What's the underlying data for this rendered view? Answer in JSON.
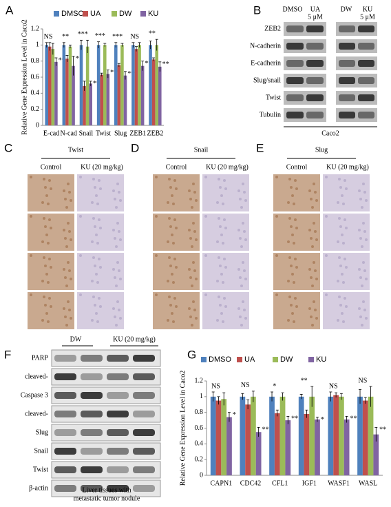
{
  "panel_labels": [
    "A",
    "B",
    "C",
    "D",
    "E",
    "F",
    "G"
  ],
  "chart_data": [
    {
      "type": "bar",
      "ylabel": "Relative Gene Expression Level in Caco2",
      "categories": [
        "E-cad",
        "N-cad",
        "Snail",
        "Twist",
        "Slug",
        "ZEB1",
        "ZEB2"
      ],
      "series": [
        {
          "name": "DMSO",
          "color": "#4f81bd",
          "values": [
            1.0,
            1.0,
            1.0,
            1.0,
            1.0,
            1.0,
            1.0
          ],
          "errors": [
            0.03,
            0.03,
            0.06,
            0.04,
            0.03,
            0.03,
            0.05
          ]
        },
        {
          "name": "UA",
          "color": "#c0504d",
          "values": [
            0.98,
            0.83,
            0.49,
            0.63,
            0.75,
            0.95,
            0.82
          ],
          "errors": [
            0.05,
            0.04,
            0.06,
            0.02,
            0.02,
            0.03,
            0.02
          ]
        },
        {
          "name": "DW",
          "color": "#9bbb59",
          "values": [
            0.95,
            0.98,
            0.98,
            1.0,
            1.0,
            1.0,
            1.0
          ],
          "errors": [
            0.07,
            0.02,
            0.08,
            0.02,
            0.02,
            0.03,
            0.07
          ]
        },
        {
          "name": "KU",
          "color": "#8064a2",
          "values": [
            0.79,
            0.74,
            0.52,
            0.64,
            0.62,
            0.74,
            0.73
          ],
          "errors": [
            0.05,
            0.12,
            0.03,
            0.05,
            0.05,
            0.06,
            0.06
          ]
        }
      ],
      "significance": [
        "NS",
        "**",
        "***",
        "***",
        "***",
        "NS",
        "**"
      ],
      "significance_ku": [
        "**",
        "*",
        "***",
        "***",
        "***",
        "**",
        "**"
      ],
      "ylim": [
        0,
        1.2
      ],
      "yticks": [
        0,
        0.2,
        0.4,
        0.6,
        0.8,
        1,
        1.2
      ]
    },
    {
      "type": "bar",
      "ylabel": "Relative Gene Expression Level in Caco2",
      "categories": [
        "CAPN1",
        "CDC42",
        "CFL1",
        "IGF1",
        "WASF1",
        "WASL"
      ],
      "series": [
        {
          "name": "DMSO",
          "color": "#4f81bd",
          "values": [
            1.0,
            1.0,
            1.0,
            1.0,
            1.0,
            1.0
          ],
          "errors": [
            0.06,
            0.04,
            0.06,
            0.03,
            0.06,
            0.09
          ]
        },
        {
          "name": "UA",
          "color": "#c0504d",
          "values": [
            0.95,
            0.9,
            0.79,
            0.78,
            1.02,
            0.95
          ],
          "errors": [
            0.05,
            0.06,
            0.04,
            0.05,
            0.03,
            0.04
          ]
        },
        {
          "name": "DW",
          "color": "#9bbb59",
          "values": [
            0.97,
            1.0,
            1.0,
            1.0,
            1.0,
            1.0
          ],
          "errors": [
            0.08,
            0.07,
            0.05,
            0.13,
            0.04,
            0.13
          ]
        },
        {
          "name": "KU",
          "color": "#8064a2",
          "values": [
            0.74,
            0.55,
            0.7,
            0.71,
            0.71,
            0.52
          ],
          "errors": [
            0.06,
            0.06,
            0.05,
            0.03,
            0.04,
            0.09
          ]
        }
      ],
      "significance": [
        "NS",
        "NS",
        "*",
        "**",
        "NS",
        "NS"
      ],
      "significance_ku": [
        "*",
        "**",
        "**",
        "*",
        "**",
        "**"
      ],
      "ylim": [
        0,
        1.2
      ],
      "yticks": [
        0,
        0.2,
        0.4,
        0.6,
        0.8,
        1,
        1.2
      ]
    }
  ],
  "blot_b": {
    "columns": [
      [
        "DMSO"
      ],
      [
        "UA",
        "5 μM"
      ],
      [
        "DW"
      ],
      [
        "KU",
        "5 μM"
      ]
    ],
    "rows": [
      "ZEB2",
      "N-cadherin",
      "E-cadherin",
      "Slug/snail",
      "Twist",
      "Tubulin"
    ],
    "cell_line": "Caco2"
  },
  "ihc": [
    {
      "title": "Twist",
      "columns": [
        "Control",
        "KU (20 mg/kg)"
      ]
    },
    {
      "title": "Snail",
      "columns": [
        "Control",
        "KU (20 mg/kg)"
      ]
    },
    {
      "title": "Slug",
      "columns": [
        "Control",
        "KU (20 mg/kg)"
      ]
    }
  ],
  "blot_f": {
    "groups": [
      "DW",
      "KU (20 mg/kg)"
    ],
    "rows": [
      "PARP",
      "cleaved-",
      "Caspase 3",
      "cleaved-",
      "Slug",
      "Snail",
      "Twist",
      "β-actin"
    ],
    "caption": [
      "Liver tissues with",
      "metastatic tumor nodule"
    ]
  }
}
